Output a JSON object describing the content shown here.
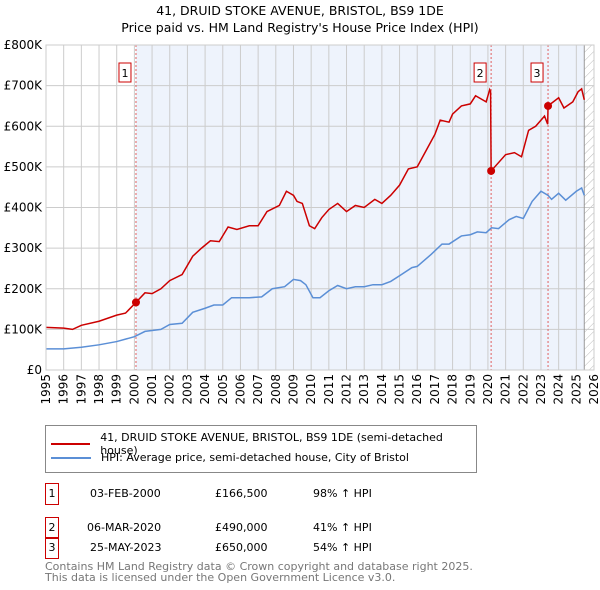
{
  "title": "41, DRUID STOKE AVENUE, BRISTOL, BS9 1DE",
  "subtitle": "Price paid vs. HM Land Registry's House Price Index (HPI)",
  "chart_data": {
    "type": "line",
    "ylim": [
      0,
      800000
    ],
    "xlim": [
      1995,
      2026
    ],
    "yticks": [
      {
        "v": 0,
        "label": "£0"
      },
      {
        "v": 100000,
        "label": "£100K"
      },
      {
        "v": 200000,
        "label": "£200K"
      },
      {
        "v": 300000,
        "label": "£300K"
      },
      {
        "v": 400000,
        "label": "£400K"
      },
      {
        "v": 500000,
        "label": "£500K"
      },
      {
        "v": 600000,
        "label": "£600K"
      },
      {
        "v": 700000,
        "label": "£700K"
      },
      {
        "v": 800000,
        "label": "£800K"
      }
    ],
    "xticks": [
      "1995",
      "1996",
      "1997",
      "1998",
      "1999",
      "2000",
      "2001",
      "2002",
      "2003",
      "2004",
      "2005",
      "2006",
      "2007",
      "2008",
      "2009",
      "2010",
      "2011",
      "2012",
      "2013",
      "2014",
      "2015",
      "2016",
      "2017",
      "2018",
      "2019",
      "2020",
      "2021",
      "2022",
      "2023",
      "2024",
      "2025",
      "2026"
    ],
    "grid": true,
    "shaded_range": [
      2000.09,
      2025.45
    ],
    "hatched_from": 2025.45,
    "series": [
      {
        "name": "41, DRUID STOKE AVENUE, BRISTOL, BS9 1DE (semi-detached house)",
        "color": "#cc0000",
        "x": [
          1995,
          1996,
          1996.5,
          1997,
          1998,
          1999,
          1999.5,
          2000.09,
          2000.6,
          2001,
          2001.5,
          2002,
          2002.7,
          2003.3,
          2003.8,
          2004.3,
          2004.8,
          2005.3,
          2005.8,
          2006.5,
          2007,
          2007.5,
          2008.2,
          2008.6,
          2009,
          2009.2,
          2009.5,
          2009.9,
          2010.2,
          2010.6,
          2011,
          2011.5,
          2012,
          2012.5,
          2013,
          2013.6,
          2014,
          2014.5,
          2015,
          2015.5,
          2016,
          2016.5,
          2017,
          2017.3,
          2017.8,
          2018,
          2018.5,
          2019,
          2019.3,
          2019.9,
          2020.1,
          2020.15,
          2020.18,
          2021,
          2021.5,
          2021.9,
          2022.3,
          2022.7,
          2023.2,
          2023.38,
          2023.4,
          2024,
          2024.3,
          2024.8,
          2025.1,
          2025.3,
          2025.45
        ],
        "y": [
          105000,
          103000,
          100000,
          110000,
          120000,
          135000,
          140000,
          166500,
          190000,
          188000,
          200000,
          220000,
          235000,
          280000,
          300000,
          318000,
          316000,
          352000,
          346000,
          355000,
          355000,
          390000,
          405000,
          440000,
          430000,
          415000,
          410000,
          355000,
          348000,
          375000,
          395000,
          410000,
          390000,
          405000,
          400000,
          420000,
          410000,
          430000,
          455000,
          495000,
          500000,
          540000,
          580000,
          615000,
          610000,
          630000,
          650000,
          655000,
          675000,
          660000,
          690000,
          685000,
          490000,
          530000,
          535000,
          525000,
          590000,
          600000,
          625000,
          605000,
          650000,
          670000,
          645000,
          660000,
          685000,
          692000,
          665000
        ]
      },
      {
        "name": "HPI: Average price, semi-detached house, City of Bristol",
        "color": "#5b8fd6",
        "x": [
          1995,
          1996,
          1997,
          1998,
          1999,
          2000,
          2000.6,
          2001.5,
          2002,
          2002.7,
          2003.3,
          2004,
          2004.5,
          2005,
          2005.5,
          2006.5,
          2007.2,
          2007.8,
          2008.5,
          2009,
          2009.4,
          2009.7,
          2010.1,
          2010.5,
          2011,
          2011.5,
          2012,
          2012.5,
          2013,
          2013.5,
          2014,
          2014.5,
          2015,
          2015.7,
          2016,
          2016.8,
          2017.4,
          2017.8,
          2018.5,
          2019,
          2019.4,
          2019.9,
          2020.2,
          2020.6,
          2021.2,
          2021.6,
          2022,
          2022.5,
          2023,
          2023.4,
          2023.6,
          2024,
          2024.4,
          2025,
          2025.3,
          2025.45
        ],
        "y": [
          52000,
          52000,
          56000,
          62000,
          70000,
          82000,
          95000,
          100000,
          112000,
          115000,
          142000,
          152000,
          160000,
          160000,
          178000,
          178000,
          180000,
          200000,
          205000,
          223000,
          220000,
          210000,
          178000,
          178000,
          195000,
          208000,
          200000,
          205000,
          205000,
          210000,
          210000,
          218000,
          232000,
          252000,
          255000,
          285000,
          310000,
          310000,
          330000,
          333000,
          340000,
          338000,
          350000,
          348000,
          370000,
          378000,
          373000,
          415000,
          440000,
          430000,
          420000,
          435000,
          418000,
          440000,
          448000,
          430000
        ]
      }
    ],
    "sales": [
      {
        "label": "1",
        "x": 2000.09,
        "price": 166500,
        "date": "03-FEB-2000",
        "price_text": "£166,500",
        "hpi": "98% ↑ HPI"
      },
      {
        "label": "2",
        "x": 2020.18,
        "price": 490000,
        "date": "06-MAR-2020",
        "price_text": "£490,000",
        "hpi": "41% ↑ HPI"
      },
      {
        "label": "3",
        "x": 2023.4,
        "price": 650000,
        "date": "25-MAY-2023",
        "price_text": "£650,000",
        "hpi": "54% ↑ HPI"
      }
    ]
  },
  "legend": {
    "red": "41, DRUID STOKE AVENUE, BRISTOL, BS9 1DE (semi-detached house)",
    "blue": "HPI: Average price, semi-detached house, City of Bristol"
  },
  "footer": {
    "line1": "Contains HM Land Registry data © Crown copyright and database right 2025.",
    "line2": "This data is licensed under the Open Government Licence v3.0."
  }
}
